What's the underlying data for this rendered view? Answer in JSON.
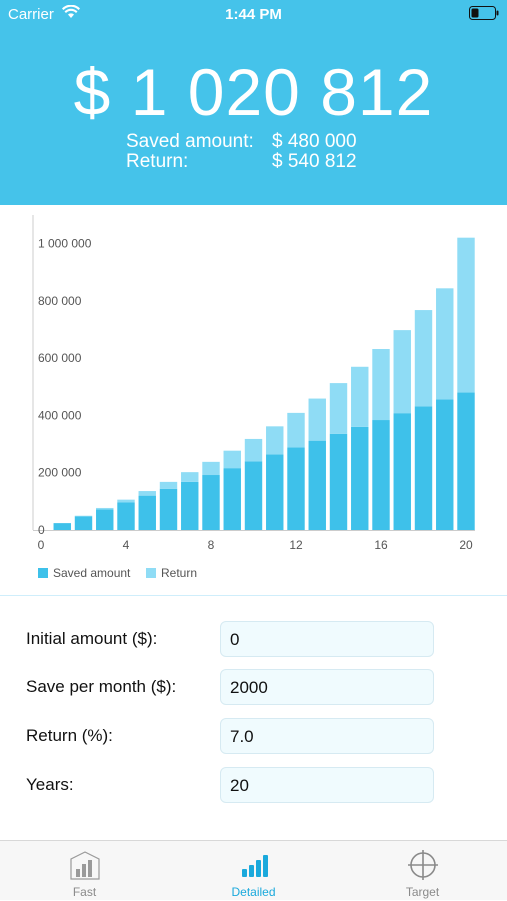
{
  "status_bar": {
    "carrier": "Carrier",
    "time": "1:44 PM"
  },
  "summary": {
    "total": "$ 1 020 812",
    "saved_label": "Saved amount:",
    "saved_value": "$ 480 000",
    "return_label": "Return:",
    "return_value": "$ 540 812"
  },
  "chart_data": {
    "type": "bar",
    "stacked": true,
    "x": [
      1,
      2,
      3,
      4,
      5,
      6,
      7,
      8,
      9,
      10,
      11,
      12,
      13,
      14,
      15,
      16,
      17,
      18,
      19,
      20
    ],
    "series": [
      {
        "name": "Saved amount",
        "color": "#3ec1ea",
        "values": [
          24000,
          48000,
          72000,
          96000,
          120000,
          144000,
          168000,
          192000,
          216000,
          240000,
          264000,
          288000,
          312000,
          336000,
          360000,
          384000,
          408000,
          432000,
          456000,
          480000
        ]
      },
      {
        "name": "Return",
        "color": "#8fdcf5",
        "values": [
          0,
          1800,
          5000,
          10000,
          16000,
          24000,
          34000,
          46000,
          61000,
          78000,
          98000,
          121000,
          147000,
          177000,
          210000,
          248000,
          290000,
          336000,
          388000,
          540812
        ]
      }
    ],
    "x_ticks": [
      "0",
      "4",
      "8",
      "12",
      "16",
      "20"
    ],
    "y_ticks": [
      "0",
      "200 000",
      "400 000",
      "600 000",
      "800 000",
      "1 000 000"
    ],
    "xlim": [
      0,
      20
    ],
    "ylim": [
      0,
      1100000
    ],
    "legend_position": "bottom-left",
    "grid": false
  },
  "form": {
    "initial_label": "Initial amount ($):",
    "initial_value": "0",
    "save_label": "Save per month ($):",
    "save_value": "2000",
    "return_label": "Return (%):",
    "return_value": "7.0",
    "years_label": "Years:",
    "years_value": "20"
  },
  "tabs": [
    {
      "label": "Fast",
      "icon": "bar-chart-icon",
      "active": false
    },
    {
      "label": "Detailed",
      "icon": "rising-bars-icon",
      "active": true
    },
    {
      "label": "Target",
      "icon": "crosshair-icon",
      "active": false
    }
  ],
  "colors": {
    "accent": "#45c3ea",
    "active_tab": "#1aa9dc"
  }
}
